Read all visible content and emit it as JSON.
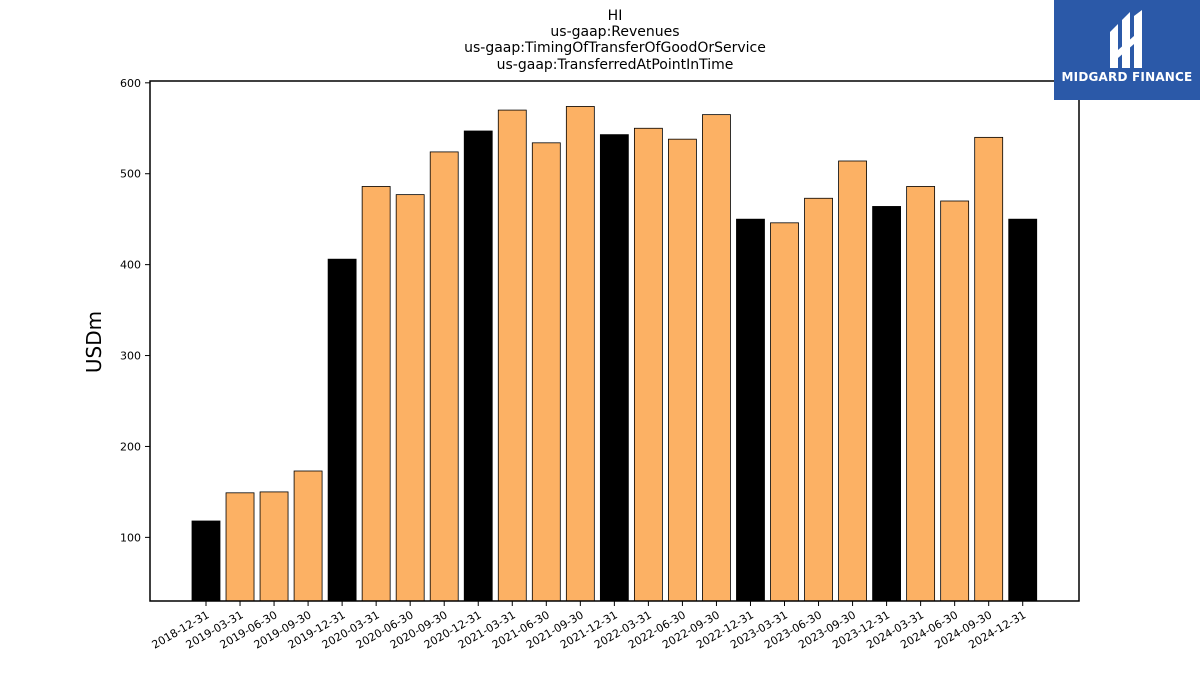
{
  "chart_data": {
    "type": "bar",
    "title_lines": [
      "HI",
      "us-gaap:Revenues",
      "us-gaap:TimingOfTransferOfGoodOrService",
      "us-gaap:TransferredAtPointInTime"
    ],
    "xlabel": "",
    "ylabel": "USDm",
    "ylim": [
      30,
      602
    ],
    "yticks": [
      100,
      200,
      300,
      400,
      500,
      600
    ],
    "grid": false,
    "categories": [
      "2018-12-31",
      "2019-03-31",
      "2019-06-30",
      "2019-09-30",
      "2019-12-31",
      "2020-03-31",
      "2020-06-30",
      "2020-09-30",
      "2020-12-31",
      "2021-03-31",
      "2021-06-30",
      "2021-09-30",
      "2021-12-31",
      "2022-03-31",
      "2022-06-30",
      "2022-09-30",
      "2022-12-31",
      "2023-03-31",
      "2023-06-30",
      "2023-09-30",
      "2023-12-31",
      "2024-03-31",
      "2024-06-30",
      "2024-09-30",
      "2024-12-31"
    ],
    "values": [
      118,
      149,
      150,
      173,
      406,
      486,
      477,
      524,
      547,
      570,
      534,
      574,
      543,
      550,
      538,
      565,
      450,
      446,
      473,
      514,
      464,
      486,
      470,
      540,
      450
    ],
    "is_year_end": [
      true,
      false,
      false,
      false,
      true,
      false,
      false,
      false,
      true,
      false,
      false,
      false,
      true,
      false,
      false,
      false,
      true,
      false,
      false,
      false,
      true,
      false,
      false,
      false,
      true
    ],
    "colors": {
      "year_end": "#000000",
      "quarter": "#fcb164",
      "edge": "#000000"
    }
  },
  "logo": {
    "text": "MIDGARD FINANCE",
    "background": "#2b59a8"
  }
}
